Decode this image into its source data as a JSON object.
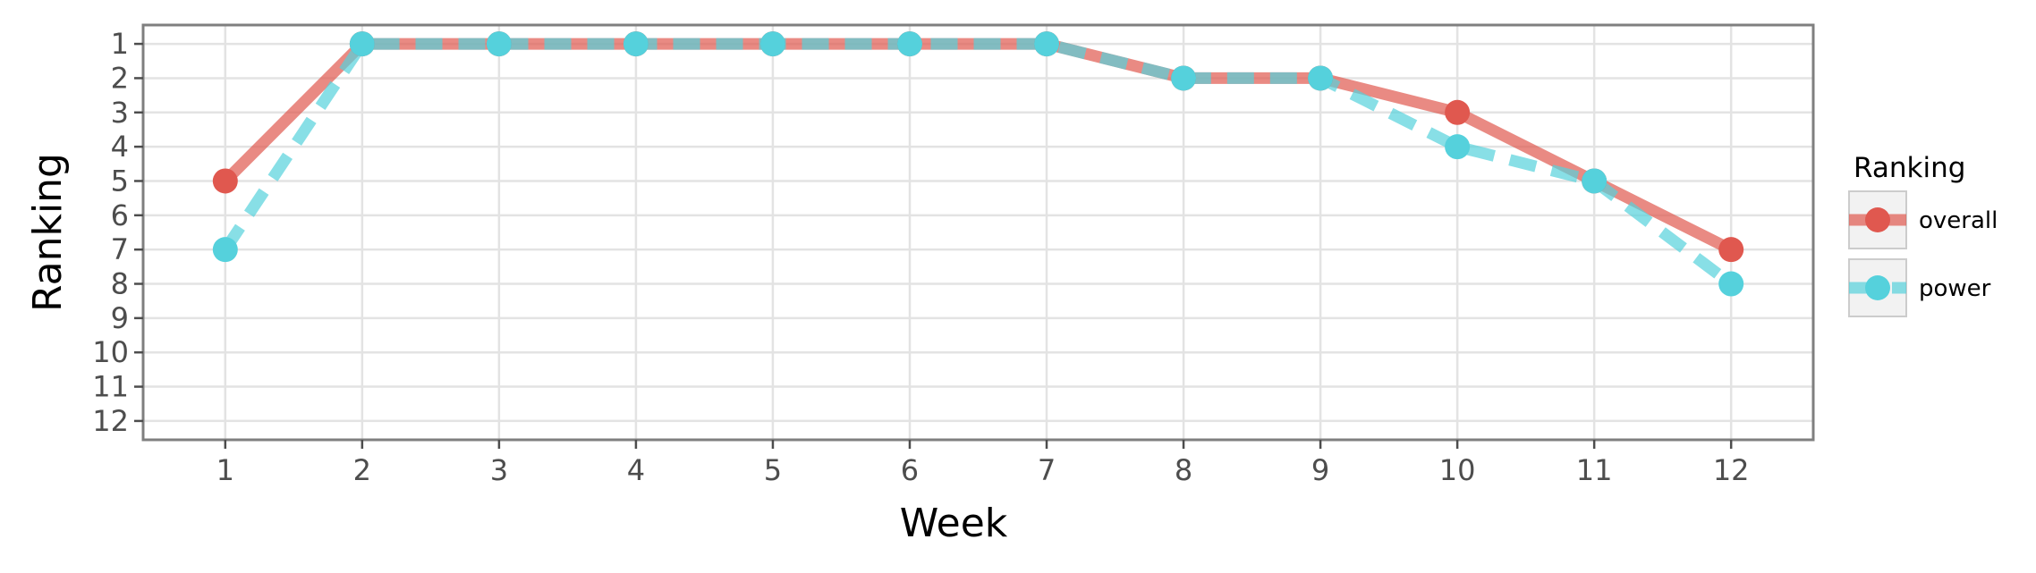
{
  "chart_data": {
    "type": "line",
    "xlabel": "Week",
    "ylabel": "Ranking",
    "x": [
      1,
      2,
      3,
      4,
      5,
      6,
      7,
      8,
      9,
      10,
      11,
      12
    ],
    "xlim": [
      0.4,
      12.6
    ],
    "ylim": [
      12.55,
      0.45
    ],
    "y_reversed": true,
    "yticks": [
      1,
      2,
      3,
      4,
      5,
      6,
      7,
      8,
      9,
      10,
      11,
      12
    ],
    "grid": true,
    "legend": {
      "title": "Ranking",
      "placement": "right"
    },
    "series": [
      {
        "name": "overall",
        "color": "#e0584f",
        "line_style": "solid",
        "values": [
          5,
          1,
          1,
          1,
          1,
          1,
          1,
          2,
          2,
          3,
          5,
          7
        ]
      },
      {
        "name": "power",
        "color": "#55d1dc",
        "line_style": "dashed",
        "values": [
          7,
          1,
          1,
          1,
          1,
          1,
          1,
          2,
          2,
          4,
          5,
          8
        ]
      }
    ]
  }
}
